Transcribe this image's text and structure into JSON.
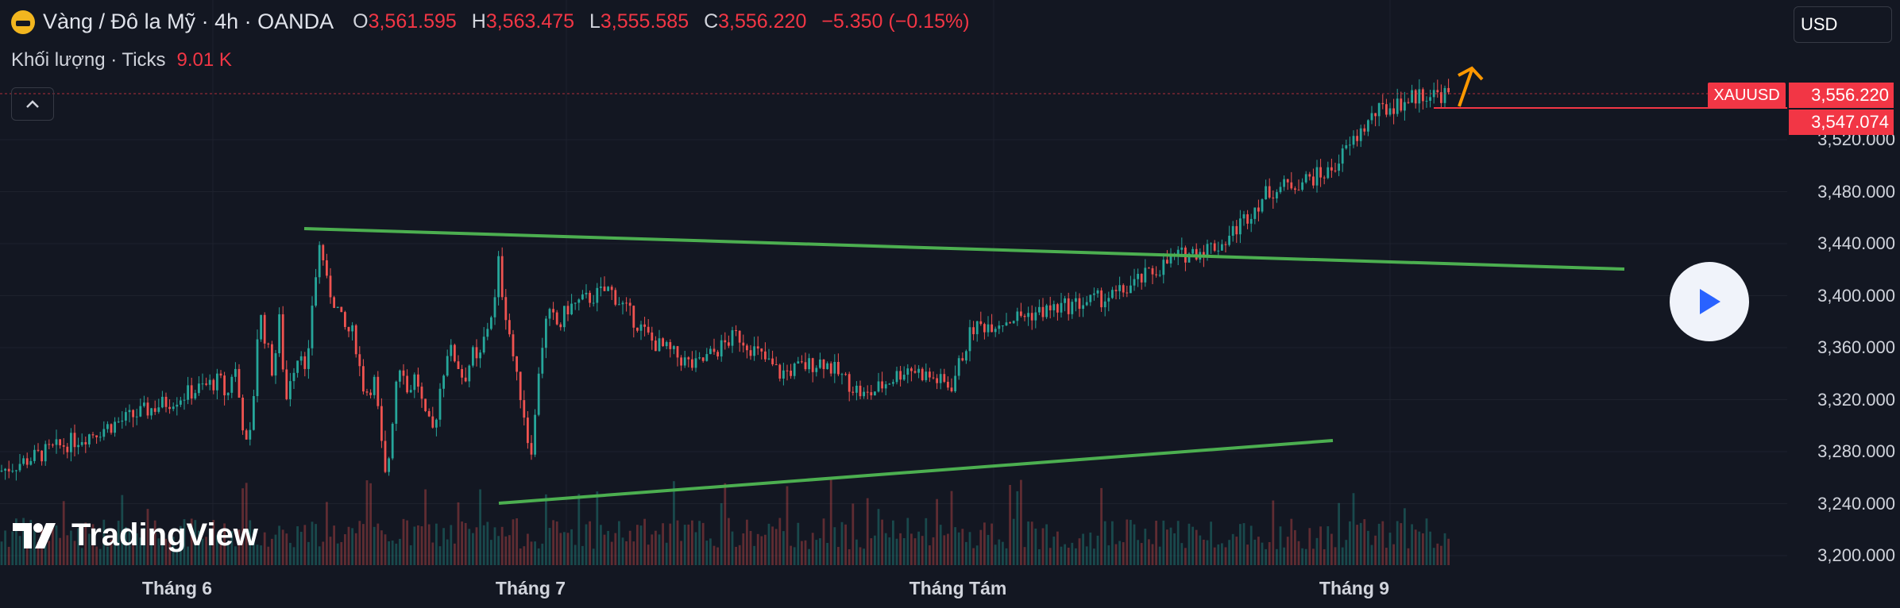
{
  "header": {
    "title": "Vàng / Đô la Mỹ · 4h · OANDA",
    "open_key": "O",
    "open": "3,561.595",
    "high_key": "H",
    "high": "3,563.475",
    "low_key": "L",
    "low": "3,555.585",
    "close_key": "C",
    "close": "3,556.220",
    "change": "−5.350 (−0.15%)"
  },
  "volume": {
    "label": "Khối lượng · Ticks",
    "value": "9.01 K"
  },
  "currency": "USD",
  "watermark": "TradingView",
  "price_tags": {
    "symbol": "XAUUSD",
    "last": "3,556.220",
    "line": "3,547.074"
  },
  "colors": {
    "background": "#131722",
    "up": "#26a69a",
    "down": "#ef5350",
    "trendline": "#4caf50",
    "arrow": "#ff9800",
    "tag": "#f23645"
  },
  "icons": {
    "play": "play-icon",
    "collapse": "chevron-up-icon",
    "logo": "gold-logo-icon"
  },
  "chart_data": {
    "type": "candlestick",
    "y_ticks": [
      "3,520.000",
      "3,480.000",
      "3,440.000",
      "3,400.000",
      "3,360.000",
      "3,320.000",
      "3,280.000",
      "3,240.000",
      "3,200.000"
    ],
    "y_values": [
      3520,
      3480,
      3440,
      3400,
      3360,
      3320,
      3280,
      3240,
      3200
    ],
    "x_ticks": [
      "Tháng 6",
      "Tháng 7",
      "Tháng Tám",
      "Tháng 9"
    ],
    "close_path": [
      [
        0,
        3265
      ],
      [
        0.02,
        3335
      ],
      [
        0.04,
        3320
      ],
      [
        0.06,
        3350
      ],
      [
        0.08,
        3310
      ],
      [
        0.1,
        3275
      ],
      [
        0.12,
        3340
      ],
      [
        0.13,
        3390
      ],
      [
        0.15,
        3365
      ],
      [
        0.17,
        3340
      ],
      [
        0.19,
        3385
      ],
      [
        0.205,
        3315
      ],
      [
        0.22,
        3340
      ],
      [
        0.25,
        3360
      ],
      [
        0.265,
        3330
      ],
      [
        0.28,
        3392
      ],
      [
        0.305,
        3445
      ],
      [
        0.32,
        3410
      ],
      [
        0.35,
        3392
      ],
      [
        0.37,
        3375
      ],
      [
        0.4,
        3370
      ],
      [
        0.415,
        3345
      ],
      [
        0.43,
        3325
      ],
      [
        0.46,
        3335
      ],
      [
        0.47,
        3300
      ],
      [
        0.49,
        3255
      ],
      [
        0.5,
        3282
      ],
      [
        0.52,
        3340
      ],
      [
        0.535,
        3352
      ],
      [
        0.55,
        3325
      ],
      [
        0.575,
        3340
      ],
      [
        0.6,
        3305
      ],
      [
        0.625,
        3295
      ],
      [
        0.64,
        3325
      ],
      [
        0.665,
        3360
      ],
      [
        0.69,
        3350
      ],
      [
        0.71,
        3335
      ],
      [
        0.735,
        3355
      ],
      [
        0.75,
        3345
      ],
      [
        0.77,
        3370
      ],
      [
        0.8,
        3398
      ],
      [
        0.805,
        3432
      ],
      [
        0.82,
        3400
      ],
      [
        0.84,
        3370
      ],
      [
        0.86,
        3335
      ],
      [
        0.875,
        3320
      ],
      [
        0.89,
        3290
      ],
      [
        0.905,
        3282
      ],
      [
        0.91,
        3300
      ],
      [
        0.92,
        3340
      ],
      [
        0.94,
        3378
      ],
      [
        0.955,
        3385
      ],
      [
        0.98,
        3375
      ],
      [
        1.0,
        3390
      ],
      [
        1.02,
        3405
      ],
      [
        1.04,
        3365
      ],
      [
        1.06,
        3345
      ],
      [
        1.08,
        3370
      ],
      [
        1.1,
        3340
      ],
      [
        1.12,
        3350
      ],
      [
        1.14,
        3322
      ],
      [
        1.16,
        3345
      ],
      [
        1.18,
        3330
      ],
      [
        1.19,
        3375
      ],
      [
        1.21,
        3385
      ],
      [
        1.24,
        3400
      ],
      [
        1.26,
        3430
      ],
      [
        1.275,
        3440
      ],
      [
        1.29,
        3480
      ],
      [
        1.31,
        3495
      ],
      [
        1.325,
        3540
      ],
      [
        1.34,
        3555
      ]
    ],
    "trendlines": [
      {
        "from": [
          "Tháng 6",
          3452
        ],
        "to": [
          "Tháng 9+",
          3421
        ]
      },
      {
        "from": [
          "Tháng 7",
          3240
        ],
        "to": [
          "Tháng 9",
          3290
        ]
      }
    ]
  }
}
